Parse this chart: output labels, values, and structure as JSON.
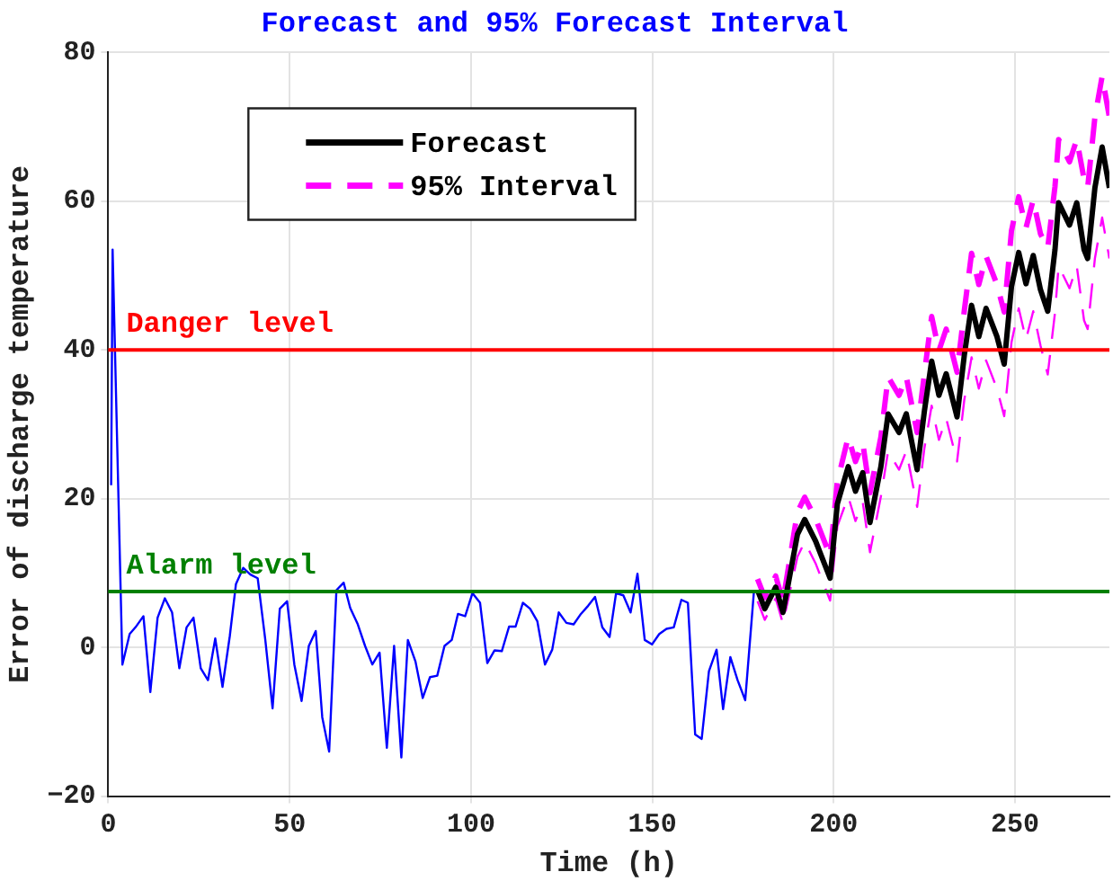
{
  "chart_data": {
    "type": "line",
    "title": "Forecast and 95% Forecast Interval",
    "xlabel": "Time (h)",
    "ylabel": "Error of discharge temperature",
    "xlim": [
      0,
      276
    ],
    "xticks": [
      0,
      50,
      100,
      150,
      200,
      250
    ],
    "ylim": [
      -20,
      80
    ],
    "yticks": [
      -20,
      0,
      20,
      40,
      60,
      80
    ],
    "grid": true,
    "legend": "top",
    "marker": "none",
    "ref_lines": [
      {
        "axis": "y",
        "value": 40,
        "label": "Danger level",
        "color": "#ff0000"
      },
      {
        "axis": "y",
        "value": 7.5,
        "label": "Alarm level",
        "color": "#008000"
      }
    ],
    "series": [
      {
        "color": "#0000ff",
        "x": [
          0.8,
          1.2,
          3.9,
          5.9,
          7.5,
          9.7,
          11.6,
          13.6,
          15.6,
          17.6,
          19.6,
          21.6,
          23.5,
          25.5,
          27.5,
          29.5,
          31.5,
          33.5,
          35.2,
          37.2,
          39.2,
          41.2,
          43.3,
          45.3,
          47.3,
          49.3,
          51.3,
          53.3,
          55.3,
          57.2,
          59,
          60.9,
          62.9,
          64.9,
          66.7,
          68.8,
          70.8,
          72.8,
          74.8,
          76.8,
          78.8,
          80.8,
          82.6,
          84.7,
          86.7,
          88.7,
          90.7,
          92.7,
          94.7,
          96.4,
          98.4,
          100.4,
          102.5,
          104.5,
          106.5,
          108.5,
          110.5,
          112.3,
          114.3,
          116.3,
          118.3,
          120.4,
          122.4,
          124.2,
          126.3,
          128.3,
          130.3,
          132.3,
          134.2,
          136.2,
          138.2,
          140,
          142,
          144,
          145.9,
          147.9,
          149.9,
          151.9,
          153.9,
          155.9,
          158,
          159.8,
          161.8,
          163.6,
          165.6,
          167.7,
          169.5,
          171.5,
          173.5,
          175.6,
          178
        ],
        "values": [
          21.8,
          53.5,
          -2.3,
          1.8,
          2.7,
          4.2,
          -6,
          4,
          6.6,
          4.7,
          -2.8,
          2.7,
          4,
          -2.8,
          -4.4,
          1.2,
          -5.3,
          1.5,
          8.5,
          10.7,
          9.8,
          9.3,
          1,
          -8.2,
          5.2,
          6.2,
          -2.3,
          -7.2,
          0.2,
          2.2,
          -9.4,
          -14,
          7.7,
          8.7,
          5.3,
          3.1,
          0.2,
          -2.3,
          -0.7,
          -13.5,
          0.2,
          -14.8,
          1,
          -1.9,
          -6.8,
          -4,
          -3.8,
          0.2,
          1,
          4.5,
          4.2,
          7.3,
          6,
          -2.1,
          -0.4,
          -0.5,
          2.8,
          2.8,
          6,
          5.2,
          3.5,
          -2.3,
          -0.3,
          4.7,
          3.3,
          3.1,
          4.5,
          5.6,
          6.8,
          2.7,
          1.4,
          7.3,
          7,
          4.7,
          9.9,
          1,
          0.4,
          1.8,
          2.5,
          2.7,
          6.4,
          6,
          -11.7,
          -12.3,
          -3.2,
          -0.3,
          -8.3,
          -1.3,
          -4.4,
          -7.1,
          7.5
        ]
      },
      {
        "name": "Forecast",
        "color": "#000000",
        "line_style": "solid",
        "x": [
          179,
          181,
          184,
          186,
          190,
          192,
          195,
          199,
          201,
          204,
          206,
          208,
          210,
          213,
          215,
          218,
          220,
          223,
          225,
          227,
          229,
          231,
          234,
          236,
          238,
          240,
          242,
          245,
          247,
          249,
          251,
          253,
          255,
          257,
          259,
          261,
          262,
          265,
          267,
          269,
          270,
          272,
          274,
          276
        ],
        "values": [
          7.7,
          5.2,
          8.1,
          4.7,
          15.2,
          17.2,
          14.3,
          9.3,
          19.3,
          24.3,
          21,
          23.5,
          16.8,
          24.3,
          31.4,
          28.9,
          31.4,
          23.9,
          31.8,
          38.5,
          33.9,
          36.8,
          31,
          39.3,
          46,
          41.8,
          45.6,
          41.8,
          38.1,
          48.5,
          53.1,
          48.9,
          52.7,
          48.1,
          45.2,
          53.5,
          59.8,
          56.8,
          59.8,
          53.5,
          52.3,
          61.8,
          67.3,
          61.8
        ]
      },
      {
        "name": "95% Interval",
        "color": "#ff00ff",
        "line_style": "dashed",
        "x": [
          179,
          181,
          184,
          186,
          190,
          192,
          195,
          199,
          201,
          204,
          206,
          208,
          210,
          213,
          215,
          218,
          220,
          223,
          225,
          227,
          229,
          231,
          234,
          236,
          238,
          240,
          242,
          245,
          247,
          249,
          251,
          253,
          255,
          257,
          259,
          261,
          262,
          265,
          267,
          269,
          270,
          272,
          274,
          276
        ],
        "values": [
          9.2,
          6.7,
          9.6,
          6.2,
          18.2,
          20.2,
          17.3,
          12.3,
          22.3,
          28.3,
          25,
          27.5,
          20.8,
          28.3,
          36.4,
          33.9,
          36.4,
          28.9,
          36.8,
          44.5,
          39.9,
          42.8,
          37,
          45.3,
          53,
          48.8,
          52.6,
          48.8,
          45.1,
          56,
          60.6,
          56.4,
          60.2,
          55.6,
          53.7,
          62,
          68.3,
          65.3,
          68.3,
          63,
          61.8,
          71.3,
          76.8,
          71.3
        ]
      },
      {
        "color": "#ff00ff",
        "line_style": "dashed",
        "x": [
          179,
          181,
          184,
          186,
          190,
          192,
          195,
          199,
          201,
          204,
          206,
          208,
          210,
          213,
          215,
          218,
          220,
          223,
          225,
          227,
          229,
          231,
          234,
          236,
          238,
          240,
          242,
          245,
          247,
          249,
          251,
          253,
          255,
          257,
          259,
          261,
          262,
          265,
          267,
          269,
          270,
          272,
          274,
          276
        ],
        "values": [
          6.2,
          3.7,
          6.6,
          3.2,
          12.2,
          14.2,
          11.3,
          6.3,
          16.3,
          20.3,
          17,
          19.5,
          12.8,
          20.3,
          26.4,
          23.9,
          26.4,
          18.9,
          26.8,
          32.5,
          27.9,
          30.8,
          25,
          33.3,
          39,
          34.8,
          38.6,
          34.8,
          31.1,
          41,
          45.6,
          41.4,
          45.2,
          40.6,
          36.7,
          45,
          51.3,
          48.3,
          51.3,
          44,
          42.8,
          52.3,
          57.8,
          52.3
        ]
      }
    ]
  }
}
